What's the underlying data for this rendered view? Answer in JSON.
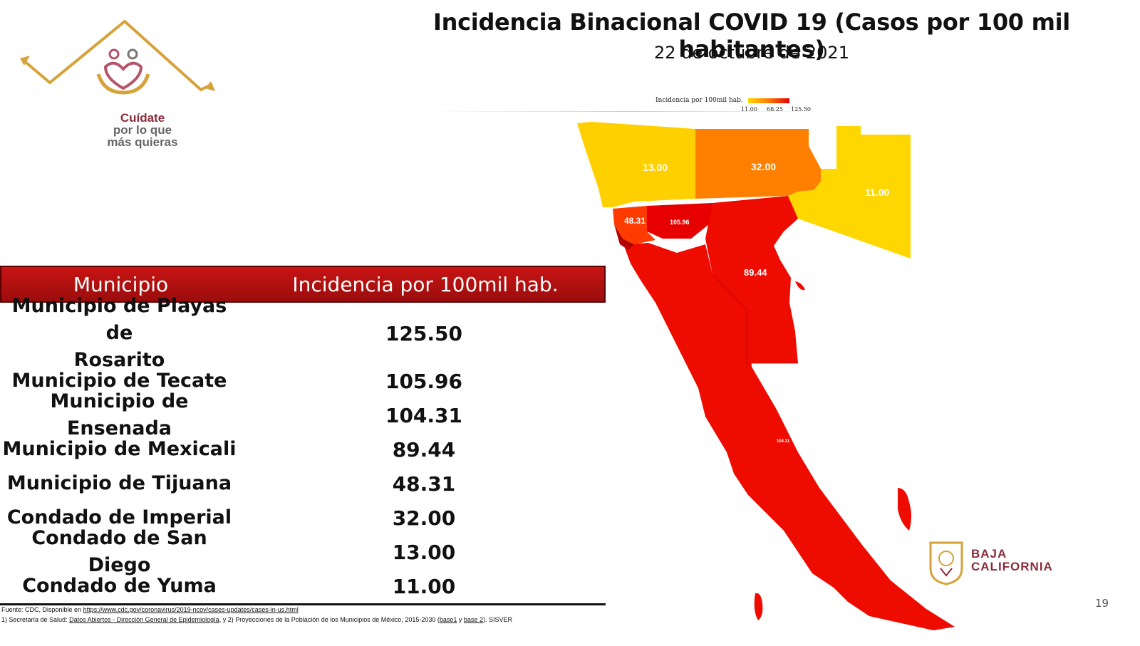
{
  "header": {
    "title": "Incidencia Binacional COVID 19 (Casos por 100 mil habitantes)",
    "date": "22 de octubre de 2021"
  },
  "logo": {
    "line1": "Cuídate",
    "line2": "por lo que",
    "line3": "más quieras",
    "icon": "heart-hands-icon"
  },
  "legend": {
    "title": "Incidencia por 100mil hab.",
    "ticks": [
      "11.00",
      "68.25",
      "125.50"
    ],
    "colors": {
      "low": "#ffd500",
      "mid": "#ff7a00",
      "high": "#e00000"
    }
  },
  "map": {
    "labels": {
      "san_diego": "13.00",
      "imperial": "32.00",
      "yuma": "11.00",
      "tijuana": "48.31",
      "tecate": "105.96",
      "mexicali": "89.44",
      "ensenada": "104.31"
    },
    "colors": {
      "san_diego": "#ffd000",
      "imperial": "#ff7f00",
      "yuma": "#ffd700",
      "tijuana": "#ff3b00",
      "tecate": "#e60000",
      "mexicali": "#ee0b00",
      "ensenada": "#ee0b00",
      "rosarito": "#b30000"
    }
  },
  "table": {
    "headers": [
      "Municipio",
      "Incidencia por 100mil hab."
    ],
    "rows": [
      {
        "name_line1": "Municipio de Playas de",
        "name_line2": "Rosarito",
        "value": "125.50"
      },
      {
        "name_line1": "Municipio de Tecate",
        "value": "105.96"
      },
      {
        "name_line1": "Municipio de Ensenada",
        "value": "104.31"
      },
      {
        "name_line1": "Municipio de Mexicali",
        "value": "89.44"
      },
      {
        "name_line1": "Municipio de Tijuana",
        "value": "48.31"
      },
      {
        "name_line1": "Condado de Imperial",
        "value": "32.00"
      },
      {
        "name_line1": "Condado de San Diego",
        "value": "13.00"
      },
      {
        "name_line1": "Condado de Yuma",
        "value": "11.00"
      }
    ]
  },
  "source": {
    "line1_prefix": "Fuente: CDC, Disponible en",
    "line1_link": "https://www.cdc.gov/coronavirus/2019-ncov/cases-updates/cases-in-us.html",
    "line2_prefix": "1) Secretaría de Salud:",
    "line2_link": "Datos Abiertos - Dirección General de Epidemiología",
    "line2_mid": ", y 2) Proyecciones de la Población de los Municipios de México, 2015-2030 (",
    "line2_base1": "base1",
    "line2_y": " y",
    "line2_base2": "base 2",
    "line2_end": "). SISVER"
  },
  "state_logo": {
    "line1": "BAJA",
    "line2": "CALIFORNIA",
    "icon": "state-seal-icon"
  },
  "page_number": "19"
}
